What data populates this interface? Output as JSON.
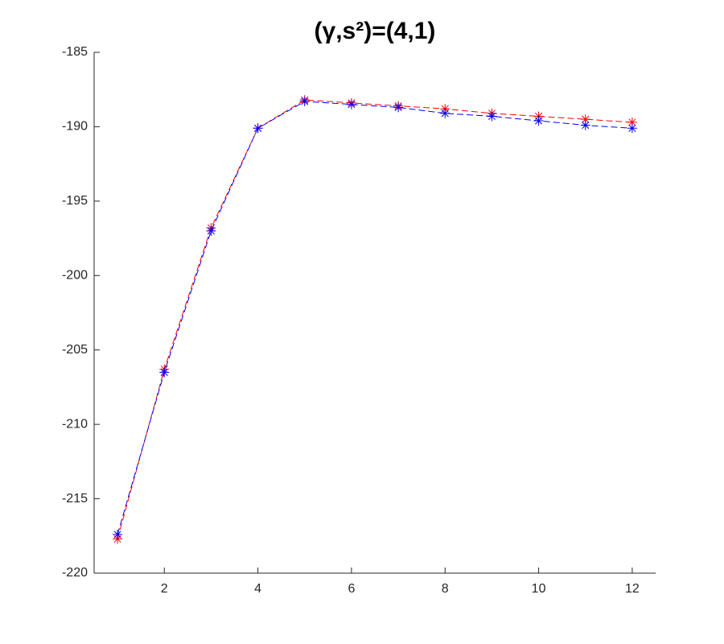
{
  "chart_data": {
    "type": "line",
    "title": "(γ,s²)=(4,1)",
    "x": [
      1,
      2,
      3,
      4,
      5,
      6,
      7,
      8,
      9,
      10,
      11,
      12
    ],
    "series": [
      {
        "color": "#ff0000",
        "values": [
          -217.7,
          -206.3,
          -196.8,
          -190.1,
          -188.2,
          -188.4,
          -188.6,
          -188.8,
          -189.1,
          -189.3,
          -189.5,
          -189.7
        ]
      },
      {
        "color": "#0000ff",
        "values": [
          -217.4,
          -206.5,
          -197.0,
          -190.1,
          -188.3,
          -188.5,
          -188.7,
          -189.1,
          -189.3,
          -189.6,
          -189.9,
          -190.1
        ]
      }
    ],
    "xlim": [
      0.5,
      12.5
    ],
    "xticks": [
      2,
      4,
      6,
      8,
      10,
      12
    ],
    "ylim": [
      -220,
      -185
    ],
    "yticks": [
      -220,
      -215,
      -210,
      -205,
      -200,
      -195,
      -190,
      -185
    ],
    "grid": false
  }
}
